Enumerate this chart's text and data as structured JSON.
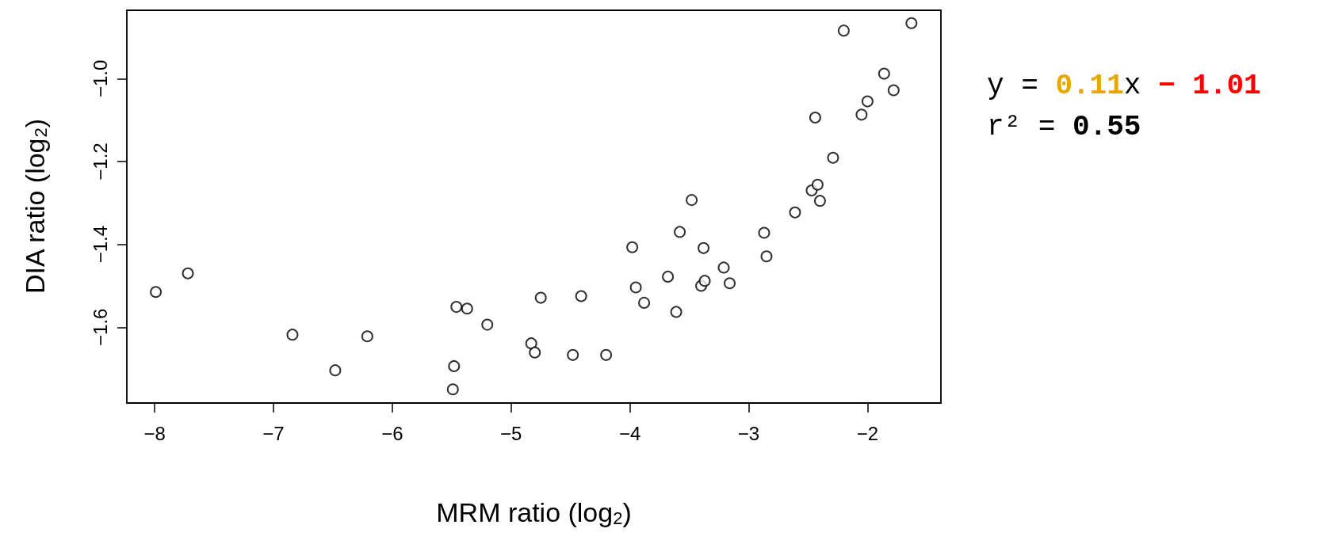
{
  "chart_data": {
    "type": "scatter",
    "xlabel": "MRM ratio (log$_{2}$)",
    "ylabel": "DIA ratio (log$_{2}$)",
    "x": [
      -7.99,
      -7.72,
      -6.84,
      -6.48,
      -6.21,
      -5.49,
      -5.48,
      -5.46,
      -5.37,
      -5.2,
      -4.83,
      -4.8,
      -4.75,
      -4.48,
      -4.41,
      -4.2,
      -3.98,
      -3.95,
      -3.88,
      -3.68,
      -3.61,
      -3.58,
      -3.48,
      -3.4,
      -3.37,
      -3.38,
      -3.21,
      -3.16,
      -2.87,
      -2.85,
      -2.61,
      -2.47,
      -2.42,
      -2.4,
      -2.44,
      -2.29,
      -2.2,
      -2.05,
      -2.0,
      -1.86,
      -1.78,
      -1.63
    ],
    "values": [
      -1.515,
      -1.47,
      -1.618,
      -1.704,
      -1.622,
      -1.75,
      -1.694,
      -1.551,
      -1.555,
      -1.594,
      -1.639,
      -1.661,
      -1.529,
      -1.667,
      -1.525,
      -1.667,
      -1.407,
      -1.504,
      -1.541,
      -1.478,
      -1.563,
      -1.37,
      -1.293,
      -1.5,
      -1.488,
      -1.409,
      -1.456,
      -1.494,
      -1.372,
      -1.429,
      -1.323,
      -1.27,
      -1.256,
      -1.295,
      -1.094,
      -1.191,
      -0.884,
      -1.087,
      -1.055,
      -0.988,
      -1.028,
      -0.866
    ],
    "color": "#000000",
    "marker": "circle",
    "xlim": [
      -8.234,
      -1.382
    ],
    "ylim": [
      -1.783,
      -0.835
    ],
    "xticks": [
      -8,
      -7,
      -6,
      -5,
      -4,
      -3,
      -2
    ],
    "yticks": [
      -1.6,
      -1.4,
      -1.2,
      {
        "value": -1.0,
        "label": "−1.0"
      }
    ],
    "grid": false,
    "annotations": [
      "y = 0.11x − 1.01",
      "r² = 0.55"
    ]
  }
}
